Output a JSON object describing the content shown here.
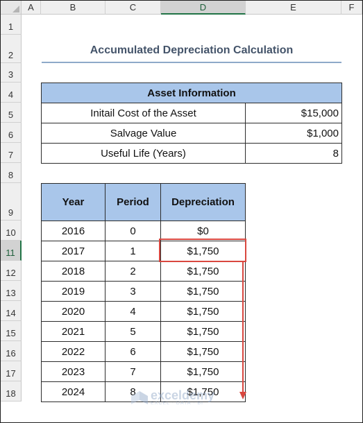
{
  "columns": [
    "A",
    "B",
    "C",
    "D",
    "E",
    "F"
  ],
  "rows": [
    "1",
    "2",
    "3",
    "4",
    "5",
    "6",
    "7",
    "8",
    "9",
    "10",
    "11",
    "12",
    "13",
    "14",
    "15",
    "16",
    "17",
    "18"
  ],
  "title": "Accumulated Depreciation Calculation",
  "asset_info": {
    "header": "Asset Information",
    "rows": [
      {
        "label": "Initail Cost of the Asset",
        "value": "$15,000"
      },
      {
        "label": "Salvage Value",
        "value": "$1,000"
      },
      {
        "label": "Useful Life (Years)",
        "value": "8"
      }
    ]
  },
  "depreciation_table": {
    "headers": [
      "Year",
      "Period",
      "Depreciation"
    ],
    "rows": [
      [
        "2016",
        "0",
        "$0"
      ],
      [
        "2017",
        "1",
        "$1,750"
      ],
      [
        "2018",
        "2",
        "$1,750"
      ],
      [
        "2019",
        "3",
        "$1,750"
      ],
      [
        "2020",
        "4",
        "$1,750"
      ],
      [
        "2021",
        "5",
        "$1,750"
      ],
      [
        "2022",
        "6",
        "$1,750"
      ],
      [
        "2023",
        "7",
        "$1,750"
      ],
      [
        "2024",
        "8",
        "$1,750"
      ]
    ]
  },
  "watermark": {
    "name": "exceldemy",
    "tagline": "EXCEL · DATA · BI"
  },
  "colors": {
    "header_fill": "#a9c6ea",
    "highlight": "#d9473f",
    "selection": "#217346"
  }
}
